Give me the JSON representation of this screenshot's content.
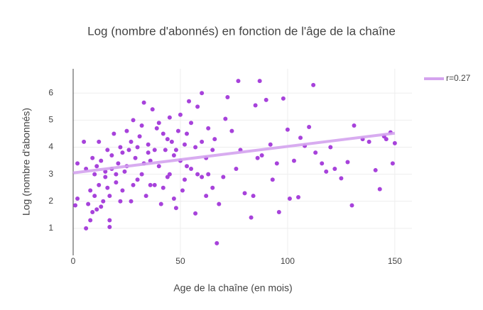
{
  "chart_data": {
    "type": "scatter",
    "title": "Log (nombre d'abonnés) en fonction de l'âge de la chaîne",
    "x_label": "Age de la chaîne (en mois)",
    "y_label": "Log (nombre d'abonnés)",
    "xlim": [
      0,
      158
    ],
    "ylim": [
      0,
      6.9
    ],
    "xticks": [
      0,
      50,
      100,
      150
    ],
    "yticks": [
      1,
      2,
      3,
      4,
      5,
      6
    ],
    "grid": true,
    "legend": "top-right",
    "points": {
      "color": "#a742db",
      "x": [
        1,
        2,
        2,
        5,
        6,
        8,
        9,
        10,
        11,
        12,
        13,
        15,
        16,
        17,
        17,
        67,
        112,
        77,
        87,
        60,
        130,
        131,
        145,
        148,
        149,
        150,
        143,
        141,
        128,
        125,
        118,
        116,
        113,
        110,
        106,
        100,
        98,
        96,
        101,
        105,
        93,
        90,
        85,
        83,
        80,
        88,
        92,
        95,
        135,
        138,
        146,
        122,
        120,
        103,
        108,
        84,
        86,
        78,
        76,
        74,
        72,
        71,
        70,
        68,
        65,
        63,
        62,
        60,
        58,
        57,
        55,
        54,
        53,
        52,
        51,
        50,
        49,
        48,
        47,
        46,
        45,
        44,
        43,
        42,
        41,
        40,
        39,
        38,
        37,
        36,
        35,
        34,
        33,
        32,
        31,
        30,
        29,
        28,
        27,
        26,
        25,
        24,
        23,
        22,
        21,
        20,
        19,
        18,
        17,
        16,
        15,
        14,
        13,
        12,
        11,
        10,
        9,
        8,
        7,
        6,
        45,
        40,
        35,
        30,
        25,
        20,
        50,
        55,
        60,
        65,
        42,
        38,
        33,
        28,
        23,
        47,
        52,
        57,
        62,
        66,
        32,
        36,
        44,
        48,
        27,
        22,
        18,
        53,
        58,
        63
      ],
      "values": [
        1.85,
        2.1,
        3.4,
        4.2,
        1.0,
        1.3,
        1.6,
        2.2,
        3.3,
        4.2,
        1.8,
        3.1,
        2.5,
        1.3,
        1.05,
        0.45,
        6.3,
        6.45,
        6.45,
        6.0,
        1.85,
        4.8,
        4.4,
        4.55,
        3.4,
        4.15,
        2.45,
        3.15,
        3.45,
        2.85,
        3.1,
        3.4,
        3.8,
        4.75,
        4.35,
        4.65,
        5.8,
        1.6,
        2.1,
        2.15,
        2.8,
        5.75,
        5.55,
        1.4,
        2.3,
        3.7,
        4.1,
        3.4,
        4.3,
        4.2,
        4.3,
        3.2,
        4.0,
        3.5,
        4.05,
        2.2,
        3.6,
        3.9,
        3.2,
        4.6,
        5.85,
        5.05,
        2.9,
        1.9,
        2.5,
        4.7,
        3.6,
        2.9,
        5.5,
        1.55,
        4.9,
        5.7,
        3.3,
        4.1,
        2.4,
        5.2,
        4.6,
        1.75,
        3.7,
        4.2,
        5.1,
        2.9,
        3.9,
        4.5,
        1.9,
        3.3,
        4.7,
        2.6,
        5.4,
        3.5,
        4.1,
        2.2,
        5.65,
        3.0,
        4.4,
        2.8,
        3.6,
        5.0,
        2.0,
        3.9,
        4.6,
        3.1,
        2.4,
        4.0,
        3.4,
        2.7,
        4.5,
        3.7,
        2.2,
        3.9,
        2.9,
        2.0,
        3.5,
        2.6,
        1.7,
        3.0,
        3.6,
        2.4,
        1.9,
        3.2,
        3.0,
        4.9,
        3.8,
        4.0,
        3.3,
        3.0,
        3.5,
        3.2,
        4.2,
        3.9,
        2.5,
        3.9,
        3.4,
        2.6,
        3.8,
        2.1,
        2.8,
        4.0,
        2.2,
        4.3,
        4.8,
        2.6,
        4.3,
        3.9,
        4.2,
        2.0,
        3.2,
        4.5,
        3.0,
        3.0
      ]
    },
    "trendline": {
      "name": "r=0.27",
      "color": "#d4a3ee",
      "x": [
        0,
        150
      ],
      "values": [
        3.05,
        4.52
      ]
    }
  }
}
